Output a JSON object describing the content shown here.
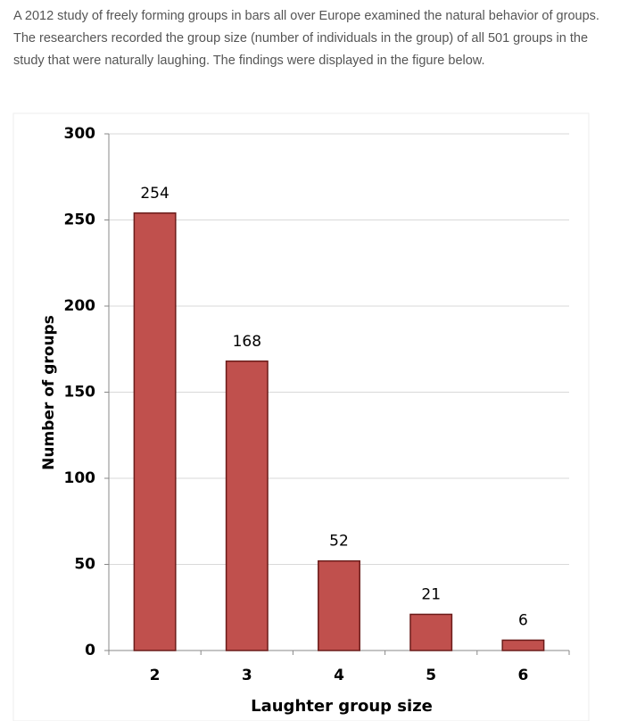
{
  "paragraph": "A 2012 study of freely forming groups in bars all over Europe examined the natural behavior of groups. The researchers recorded the group size (number of individuals in the group) of all 501 groups in the study that were naturally laughing. The findings were displayed in the figure below.",
  "chart_data": {
    "type": "bar",
    "x_label": "Laughter group size",
    "y_label": "Number of groups",
    "categories": [
      "2",
      "3",
      "4",
      "5",
      "6"
    ],
    "values": [
      254,
      168,
      52,
      21,
      6
    ],
    "color": "#c0504d",
    "ylim": [
      0,
      300
    ],
    "yticks": [
      0,
      50,
      100,
      150,
      200,
      250,
      300
    ],
    "grid": true
  }
}
